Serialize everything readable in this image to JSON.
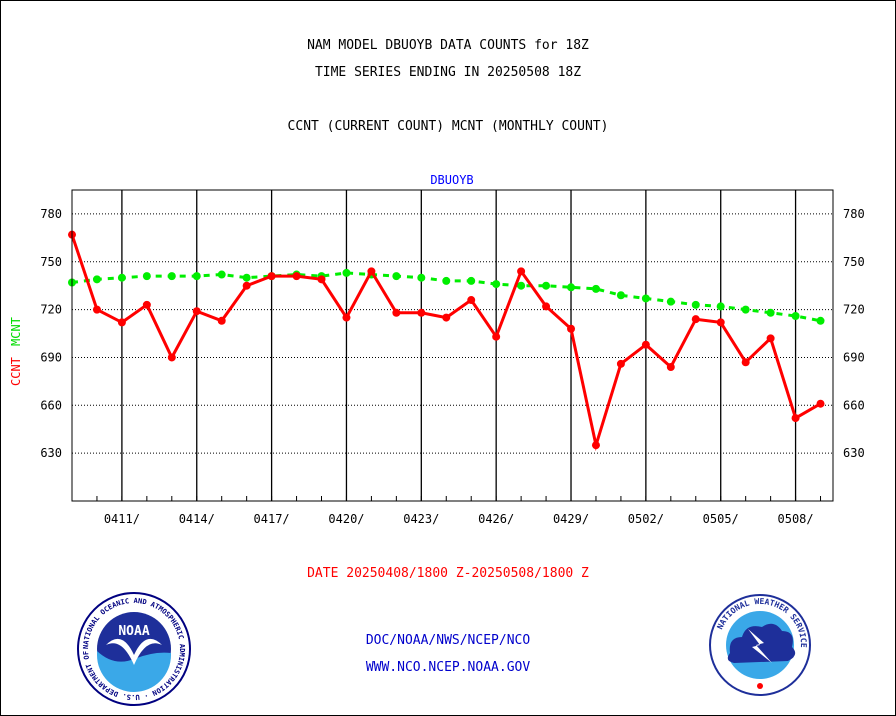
{
  "header": {
    "title_line1": "NAM MODEL DBUOYB DATA COUNTS for 18Z",
    "title_line2": "TIME SERIES ENDING IN 20250508 18Z",
    "subtitle": "CCNT (CURRENT COUNT) MCNT (MONTHLY COUNT)"
  },
  "footer": {
    "date_range": "DATE 20250408/1800 Z-20250508/1800 Z",
    "org_path": "DOC/NOAA/NWS/NCEP/NCO",
    "website": "WWW.NCO.NCEP.NOAA.GOV"
  },
  "logos": {
    "noaa_text": "NOAA",
    "noaa_ring_text": "NATIONAL OCEANIC AND ATMOSPHERIC ADMINISTRATION · U.S. DEPARTMENT OF COMMERCE",
    "nws_ring_text": "NATIONAL WEATHER SERVICE"
  },
  "colors": {
    "ccnt": "#ff0000",
    "mcnt": "#00ee00",
    "panel_label": "#0000ff",
    "footer_text": "#0000cc"
  },
  "chart_data": {
    "type": "line",
    "panel_label": "DBUOYB",
    "ylabel_ccnt": "CCNT",
    "ylabel_mcnt": "MCNT",
    "ylim": [
      600,
      795
    ],
    "yticks": [
      630,
      660,
      690,
      720,
      750,
      780
    ],
    "grid": true,
    "xlim": [
      0,
      30.5
    ],
    "xtick_positions": [
      2,
      5,
      8,
      11,
      14,
      17,
      20,
      23,
      26,
      29
    ],
    "xtick_labels": [
      "0411/",
      "0414/",
      "0417/",
      "0420/",
      "0423/",
      "0426/",
      "0429/",
      "0502/",
      "0505/",
      "0508/"
    ],
    "series": [
      {
        "name": "CCNT",
        "style": "solid",
        "x": [
          0,
          1,
          2,
          3,
          4,
          5,
          6,
          7,
          8,
          9,
          10,
          11,
          12,
          13,
          14,
          15,
          16,
          17,
          18,
          19,
          20,
          21,
          22,
          23,
          24,
          25,
          26,
          27,
          28,
          29,
          30
        ],
        "values": [
          767,
          720,
          712,
          723,
          690,
          719,
          713,
          735,
          741,
          741,
          739,
          715,
          744,
          718,
          718,
          715,
          726,
          703,
          744,
          722,
          708,
          635,
          686,
          698,
          684,
          714,
          712,
          687,
          702,
          652,
          661
        ]
      },
      {
        "name": "MCNT",
        "style": "dashed",
        "x": [
          0,
          1,
          2,
          3,
          4,
          5,
          6,
          7,
          8,
          9,
          10,
          11,
          12,
          13,
          14,
          15,
          16,
          17,
          18,
          19,
          20,
          21,
          22,
          23,
          24,
          25,
          26,
          27,
          28,
          29,
          30
        ],
        "values": [
          737,
          739,
          740,
          741,
          741,
          741,
          742,
          740,
          741,
          742,
          741,
          743,
          742,
          741,
          740,
          738,
          738,
          736,
          735,
          735,
          734,
          733,
          729,
          727,
          725,
          723,
          722,
          720,
          718,
          716,
          713
        ]
      }
    ]
  }
}
